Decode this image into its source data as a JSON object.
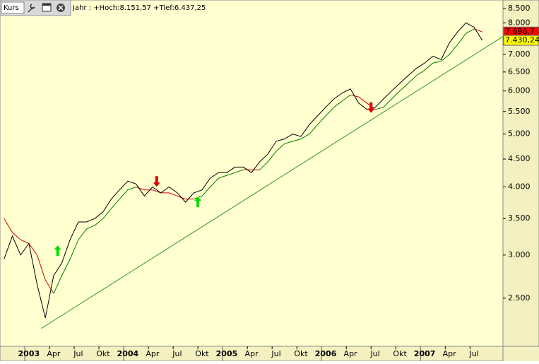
{
  "header": {
    "tab": "Kurs",
    "info": "Jahr : +Hoch:8.151,57 +Tief:6.437,25"
  },
  "chart_data": {
    "type": "line",
    "log_scale": true,
    "xlim": [
      "2002-10",
      "2007-11"
    ],
    "xticks": [
      {
        "value": "2003-01",
        "label": "2003"
      },
      {
        "value": "2003-04",
        "label": "Apr"
      },
      {
        "value": "2003-07",
        "label": "Jul"
      },
      {
        "value": "2003-10",
        "label": "Okt"
      },
      {
        "value": "2004-01",
        "label": "2004"
      },
      {
        "value": "2004-04",
        "label": "Apr"
      },
      {
        "value": "2004-07",
        "label": "Jul"
      },
      {
        "value": "2004-10",
        "label": "Okt"
      },
      {
        "value": "2005-01",
        "label": "2005"
      },
      {
        "value": "2005-04",
        "label": "Apr"
      },
      {
        "value": "2005-07",
        "label": "Jul"
      },
      {
        "value": "2005-10",
        "label": "Okt"
      },
      {
        "value": "2006-01",
        "label": "2006"
      },
      {
        "value": "2006-04",
        "label": "Apr"
      },
      {
        "value": "2006-07",
        "label": "Jul"
      },
      {
        "value": "2006-10",
        "label": "Okt"
      },
      {
        "value": "2007-01",
        "label": "2007"
      },
      {
        "value": "2007-04",
        "label": "Apr"
      },
      {
        "value": "2007-07",
        "label": "Jul"
      }
    ],
    "ylim": [
      2040,
      8810
    ],
    "yticks": [
      {
        "value": 2500,
        "label": "2.500"
      },
      {
        "value": 3000,
        "label": "3.000"
      },
      {
        "value": 3500,
        "label": "3.500"
      },
      {
        "value": 4000,
        "label": "4.000"
      },
      {
        "value": 4500,
        "label": "4.500"
      },
      {
        "value": 5000,
        "label": "5.000"
      },
      {
        "value": 5500,
        "label": "5.500"
      },
      {
        "value": 6000,
        "label": "6.000"
      },
      {
        "value": 6500,
        "label": "6.500"
      },
      {
        "value": 7000,
        "label": "7.000"
      },
      {
        "value": 7500,
        "label": "7.500"
      },
      {
        "value": 8000,
        "label": "8.000"
      },
      {
        "value": 8500,
        "label": "8.500"
      }
    ],
    "x": [
      "2002-10",
      "2002-11",
      "2002-12",
      "2003-01",
      "2003-02",
      "2003-03",
      "2003-04",
      "2003-05",
      "2003-06",
      "2003-07",
      "2003-08",
      "2003-09",
      "2003-10",
      "2003-11",
      "2003-12",
      "2004-01",
      "2004-02",
      "2004-03",
      "2004-04",
      "2004-05",
      "2004-06",
      "2004-07",
      "2004-08",
      "2004-09",
      "2004-10",
      "2004-11",
      "2004-12",
      "2005-01",
      "2005-02",
      "2005-03",
      "2005-04",
      "2005-05",
      "2005-06",
      "2005-07",
      "2005-08",
      "2005-09",
      "2005-10",
      "2005-11",
      "2005-12",
      "2006-01",
      "2006-02",
      "2006-03",
      "2006-04",
      "2006-05",
      "2006-06",
      "2006-07",
      "2006-08",
      "2006-09",
      "2006-10",
      "2006-11",
      "2006-12",
      "2007-01",
      "2007-02",
      "2007-03",
      "2007-04",
      "2007-05",
      "2007-06",
      "2007-07",
      "2007-08"
    ],
    "series": [
      {
        "color": "#008000",
        "width": 1,
        "values": [
          null,
          null,
          null,
          null,
          null,
          null,
          2550,
          2750,
          2950,
          3200,
          3350,
          3400,
          3500,
          3650,
          3800,
          3950,
          4000,
          null,
          null,
          null,
          null,
          null,
          null,
          3800,
          3850,
          4000,
          4150,
          4200,
          4250,
          4300,
          null,
          4300,
          4450,
          4650,
          4800,
          4850,
          4900,
          5000,
          5200,
          5400,
          5600,
          5750,
          5900,
          null,
          null,
          5550,
          5600,
          5800,
          6000,
          6200,
          6400,
          6550,
          6750,
          6800,
          7000,
          7300,
          7650,
          7800,
          null
        ]
      },
      {
        "color": "#cc0000",
        "width": 1,
        "label_color": "#ff0000",
        "values": [
          3500,
          3300,
          3200,
          3150,
          3000,
          2700,
          2550,
          null,
          null,
          null,
          null,
          null,
          null,
          null,
          null,
          null,
          4000,
          3950,
          3950,
          3900,
          3900,
          3850,
          3800,
          3800,
          null,
          null,
          null,
          null,
          null,
          4300,
          4300,
          4300,
          null,
          null,
          null,
          null,
          null,
          null,
          null,
          null,
          null,
          null,
          5900,
          5850,
          5700,
          5550,
          null,
          null,
          null,
          null,
          null,
          null,
          null,
          null,
          null,
          null,
          null,
          7800,
          7696.7
        ],
        "value_labels": [
          null,
          null,
          null,
          null,
          null,
          null,
          null,
          null,
          null,
          null,
          null,
          null,
          null,
          null,
          null,
          null,
          null,
          null,
          null,
          null,
          null,
          null,
          null,
          null,
          null,
          null,
          null,
          null,
          null,
          null,
          null,
          null,
          null,
          null,
          null,
          null,
          null,
          null,
          null,
          null,
          null,
          null,
          null,
          null,
          null,
          null,
          null,
          null,
          null,
          null,
          null,
          null,
          null,
          null,
          null,
          null,
          null,
          null,
          "7.696,7"
        ]
      },
      {
        "color": "#000000",
        "width": 1,
        "label_color": "#ffff00",
        "values": [
          2950,
          3250,
          3000,
          3150,
          2650,
          2300,
          2750,
          2900,
          3200,
          3450,
          3450,
          3500,
          3600,
          3800,
          3950,
          4100,
          4050,
          3850,
          4000,
          3900,
          4000,
          3900,
          3750,
          3900,
          3950,
          4150,
          4250,
          4250,
          4350,
          4350,
          4250,
          4450,
          4600,
          4850,
          4900,
          5000,
          4950,
          5200,
          5400,
          5600,
          5800,
          5950,
          6050,
          5700,
          5550,
          5600,
          5800,
          6000,
          6200,
          6400,
          6600,
          6750,
          6950,
          6850,
          7350,
          7700,
          8000,
          7850,
          7430.24
        ],
        "value_labels": [
          null,
          null,
          null,
          null,
          null,
          null,
          null,
          null,
          null,
          null,
          null,
          null,
          null,
          null,
          null,
          null,
          null,
          null,
          null,
          null,
          null,
          null,
          null,
          null,
          null,
          null,
          null,
          null,
          null,
          null,
          null,
          null,
          null,
          null,
          null,
          null,
          null,
          null,
          null,
          null,
          null,
          null,
          null,
          null,
          null,
          null,
          null,
          null,
          null,
          null,
          null,
          null,
          null,
          null,
          null,
          null,
          null,
          null,
          "7.430,24"
        ]
      },
      {
        "color": "#339933",
        "width": 1,
        "x": [
          "2003-03",
          "2007-11"
        ],
        "values": [
          2200,
          7550
        ]
      }
    ],
    "signals": [
      {
        "x": "2003-05",
        "value": 3050,
        "direction": "up",
        "color": "#00e000"
      },
      {
        "x": "2004-05",
        "value": 4100,
        "direction": "down",
        "color": "#e00000"
      },
      {
        "x": "2004-10",
        "value": 3750,
        "direction": "up",
        "color": "#00e000"
      },
      {
        "x": "2006-07",
        "value": 5600,
        "direction": "down",
        "color": "#e00000"
      }
    ]
  }
}
